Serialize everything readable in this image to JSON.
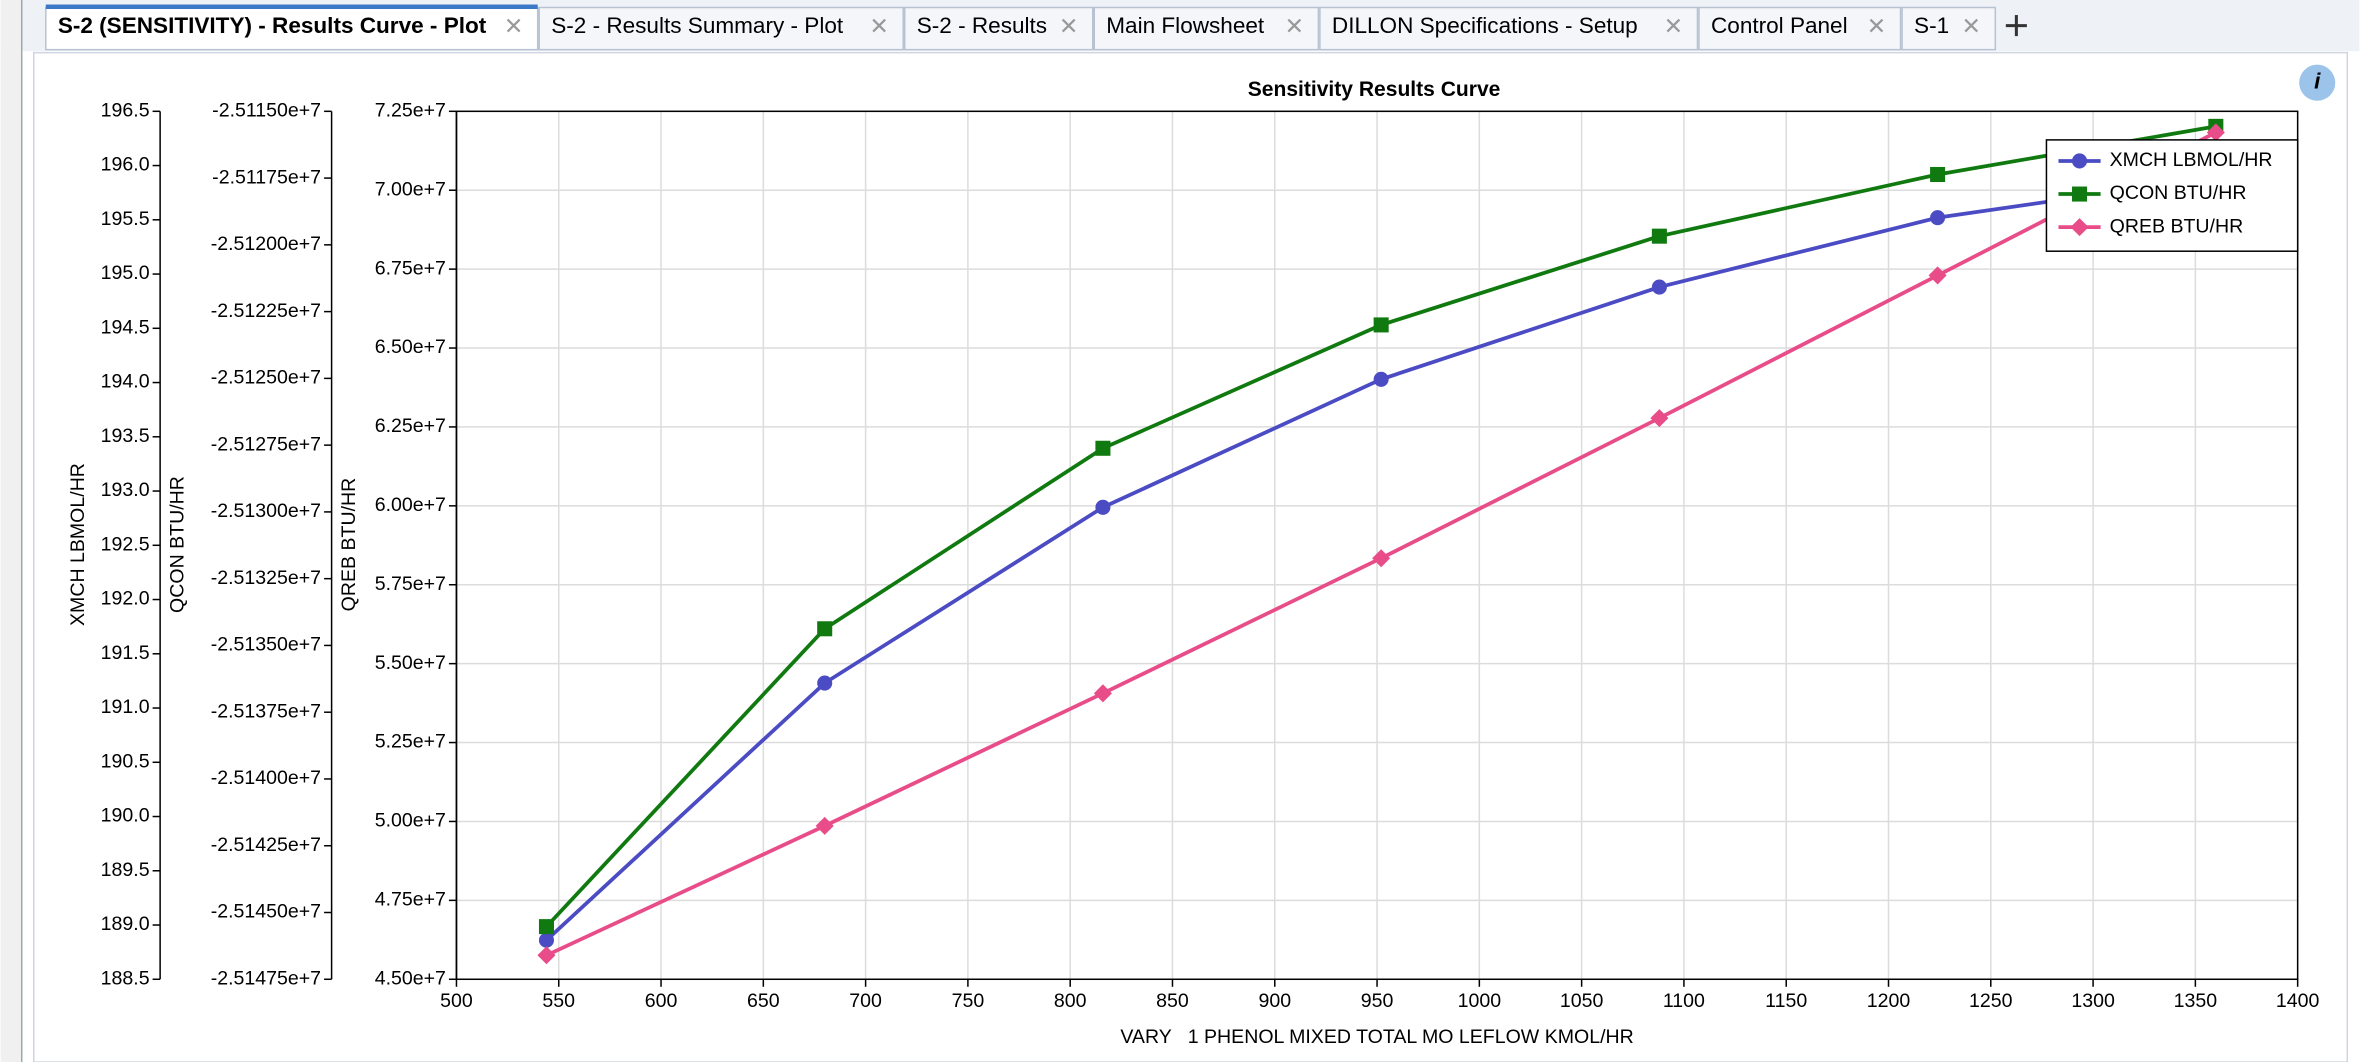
{
  "tabs": [
    "S-2 (SENSITIVITY) - Results Curve - Plot",
    "S-2 - Results Summary - Plot",
    "S-2 - Results",
    "Main Flowsheet",
    "DILLON Specifications - Setup",
    "Control Panel",
    "S-1"
  ],
  "chart_data": {
    "type": "line",
    "title": "Sensitivity Results Curve",
    "x_label": "VARY   1 PHENOL MIXED TOTAL MO LEFLOW KMOL/HR",
    "y_label": "XMCH LBMOL/HR",
    "y2_label": "QCON BTU/HR",
    "y3_label": "QREB BTU/HR",
    "x": [
      544,
      680,
      816,
      952,
      1088,
      1224,
      1360
    ],
    "xlim": [
      500,
      1400
    ],
    "xticks": [
      500,
      550,
      600,
      650,
      700,
      750,
      800,
      850,
      900,
      950,
      1000,
      1050,
      1100,
      1150,
      1200,
      1250,
      1300,
      1350,
      1400
    ],
    "ylim": [
      188.5,
      196.5
    ],
    "yticks": [
      188.5,
      {
        "value": 189,
        "label": "189.0"
      },
      189.5,
      {
        "value": 190,
        "label": "190.0"
      },
      190.5,
      {
        "value": 191,
        "label": "191.0"
      },
      191.5,
      {
        "value": 192,
        "label": "192.0"
      },
      192.5,
      {
        "value": 193,
        "label": "193.0"
      },
      193.5,
      {
        "value": 194,
        "label": "194.0"
      },
      194.5,
      {
        "value": 195,
        "label": "195.0"
      },
      195.5,
      {
        "value": 196,
        "label": "196.0"
      },
      196.5
    ],
    "y2lim": [
      -25147500,
      -25115000
    ],
    "y2ticks": [
      {
        "value": -25147500,
        "label": "-2.51475e+7"
      },
      {
        "value": -25145000,
        "label": "-2.51450e+7"
      },
      {
        "value": -25142500,
        "label": "-2.51425e+7"
      },
      {
        "value": -25140000,
        "label": "-2.51400e+7"
      },
      {
        "value": -25137500,
        "label": "-2.51375e+7"
      },
      {
        "value": -25135000,
        "label": "-2.51350e+7"
      },
      {
        "value": -25132500,
        "label": "-2.51325e+7"
      },
      {
        "value": -25130000,
        "label": "-2.51300e+7"
      },
      {
        "value": -25127500,
        "label": "-2.51275e+7"
      },
      {
        "value": -25125000,
        "label": "-2.51250e+7"
      },
      {
        "value": -25122500,
        "label": "-2.51225e+7"
      },
      {
        "value": -25120000,
        "label": "-2.51200e+7"
      },
      {
        "value": -25117500,
        "label": "-2.51175e+7"
      },
      {
        "value": -25115000,
        "label": "-2.51150e+7"
      }
    ],
    "y3lim": [
      45000000,
      72500000
    ],
    "y3ticks": [
      {
        "value": 45000000,
        "label": "4.50e+7"
      },
      {
        "value": 47500000,
        "label": "4.75e+7"
      },
      {
        "value": 50000000,
        "label": "5.00e+7"
      },
      {
        "value": 52500000,
        "label": "5.25e+7"
      },
      {
        "value": 55000000,
        "label": "5.50e+7"
      },
      {
        "value": 57500000,
        "label": "5.75e+7"
      },
      {
        "value": 60000000,
        "label": "6.00e+7"
      },
      {
        "value": 62500000,
        "label": "6.25e+7"
      },
      {
        "value": 65000000,
        "label": "6.50e+7"
      },
      {
        "value": 67500000,
        "label": "6.75e+7"
      },
      {
        "value": 70000000,
        "label": "7.00e+7"
      },
      {
        "value": 72500000,
        "label": "7.25e+7"
      }
    ],
    "grid": true,
    "legend": "upper right",
    "series": [
      {
        "name": "XMCH LBMOL/HR",
        "color": "#4b4bc4",
        "marker": "circle",
        "axis": "y",
        "values": [
          188.86,
          191.23,
          192.85,
          194.03,
          194.88,
          195.52,
          195.89
        ]
      },
      {
        "name": "QCON BTU/HR",
        "color": "#107a10",
        "marker": "square",
        "axis": "y2",
        "values": [
          -25145529,
          -25134376,
          -25127617,
          -25122998,
          -25119675,
          -25117366,
          -25115563
        ]
      },
      {
        "name": "QREB BTU/HR",
        "color": "#e84d8a",
        "marker": "diamond",
        "axis": "y3",
        "values": [
          45760000,
          49860000,
          54060000,
          58340000,
          62780000,
          67300000,
          71830000
        ]
      }
    ]
  }
}
